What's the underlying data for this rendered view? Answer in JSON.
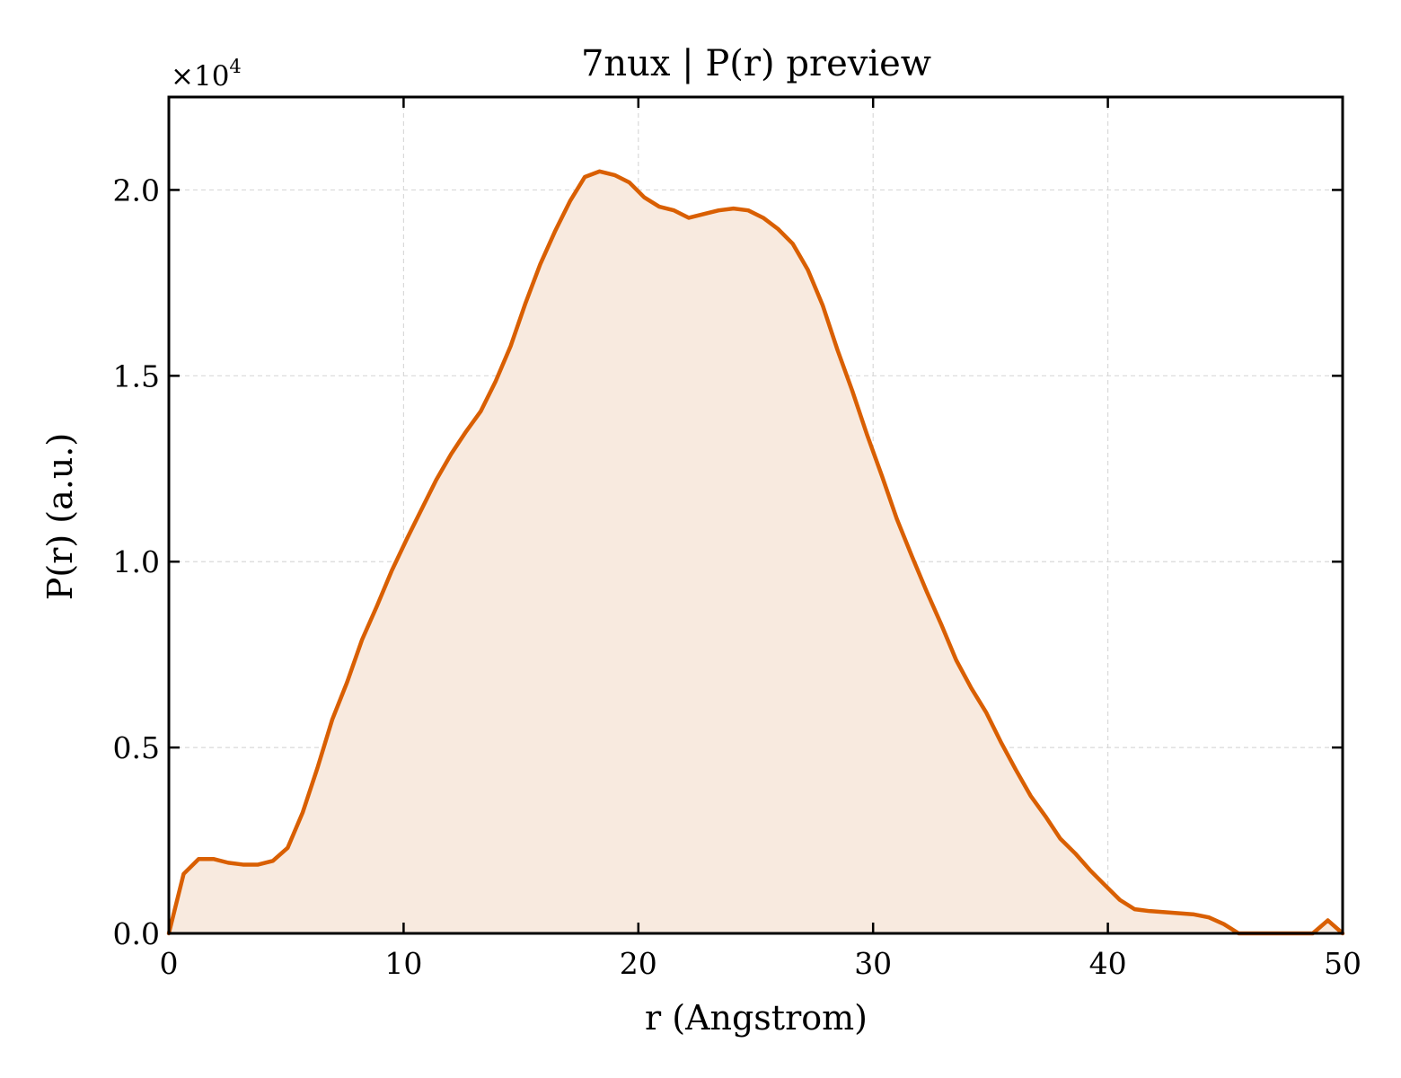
{
  "chart_data": {
    "type": "area",
    "title": "7nux | P(r) preview",
    "xlabel": "r (Angstrom)",
    "ylabel": "P(r) (a.u.)",
    "y_multiplier": {
      "base": "×10",
      "exponent": "4"
    },
    "xlim": [
      0,
      50
    ],
    "ylim": [
      0,
      22500
    ],
    "x_ticks": [
      0,
      10,
      20,
      30,
      40,
      50
    ],
    "x_tick_labels": [
      "0",
      "10",
      "20",
      "30",
      "40",
      "50"
    ],
    "y_ticks": [
      0,
      5000,
      10000,
      15000,
      20000
    ],
    "y_tick_labels": [
      "0.0",
      "0.5",
      "1.0",
      "1.5",
      "2.0"
    ],
    "grid": true,
    "colors": {
      "line": "#d95f02",
      "fill": "#f8eadf",
      "grid": "#d9d9d9"
    },
    "series": [
      {
        "x": [
          0.0,
          0.63,
          1.27,
          1.9,
          2.53,
          3.16,
          3.8,
          4.43,
          5.06,
          5.7,
          6.33,
          6.96,
          7.59,
          8.23,
          8.86,
          9.49,
          10.13,
          10.76,
          11.39,
          12.03,
          12.66,
          13.29,
          13.92,
          14.56,
          15.19,
          15.82,
          16.46,
          17.09,
          17.72,
          18.35,
          18.99,
          19.62,
          20.25,
          20.89,
          21.52,
          22.15,
          22.78,
          23.42,
          24.05,
          24.68,
          25.32,
          25.95,
          26.58,
          27.22,
          27.85,
          28.48,
          29.11,
          29.75,
          30.38,
          31.01,
          31.65,
          32.28,
          32.91,
          33.54,
          34.18,
          34.81,
          35.44,
          36.08,
          36.71,
          37.34,
          37.97,
          38.61,
          39.24,
          39.87,
          40.51,
          41.14,
          41.77,
          42.41,
          43.04,
          43.67,
          44.3,
          44.94,
          45.57,
          46.2,
          46.84,
          47.47,
          48.1,
          48.73,
          49.37,
          50.0
        ],
        "y": [
          0,
          1600,
          2000,
          2000,
          1900,
          1850,
          1850,
          1950,
          2300,
          3250,
          4450,
          5750,
          6750,
          7900,
          8800,
          9750,
          10600,
          11400,
          12200,
          12900,
          13500,
          14050,
          14850,
          15800,
          16950,
          18000,
          18900,
          19700,
          20350,
          20500,
          20400,
          20200,
          19800,
          19550,
          19450,
          19250,
          19350,
          19450,
          19500,
          19450,
          19250,
          18950,
          18550,
          17850,
          16900,
          15700,
          14600,
          13400,
          12300,
          11150,
          10150,
          9200,
          8300,
          7350,
          6600,
          5950,
          5150,
          4400,
          3700,
          3150,
          2550,
          2150,
          1700,
          1300,
          900,
          650,
          600,
          570,
          540,
          510,
          430,
          250,
          0,
          0,
          0,
          0,
          0,
          0,
          350,
          0
        ]
      }
    ]
  }
}
